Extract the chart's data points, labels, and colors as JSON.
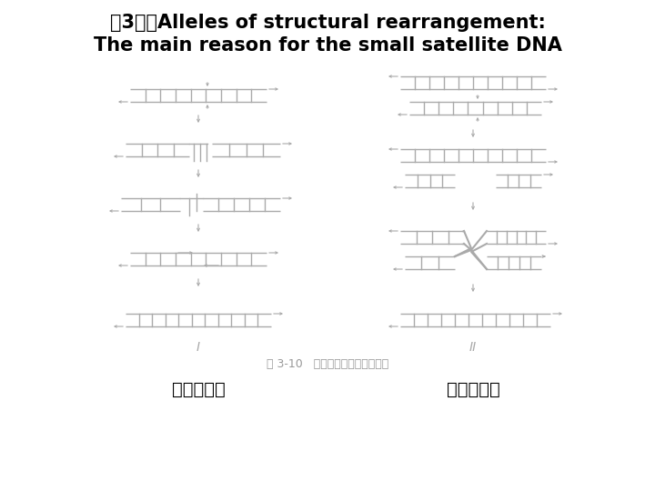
{
  "title_line1": "（3）、Alleles of structural rearrangement:",
  "title_line2": "The main reason for the small satellite DNA",
  "fig_caption": "图 3-10   基因结构重排突变的模式",
  "label_left": "基因内重排",
  "label_right": "基因间重排",
  "roman_left": "I",
  "roman_right": "II",
  "bg_color": "#ffffff",
  "line_color": "#aaaaaa",
  "title_color": "#000000",
  "label_color": "#000000",
  "caption_color": "#999999"
}
